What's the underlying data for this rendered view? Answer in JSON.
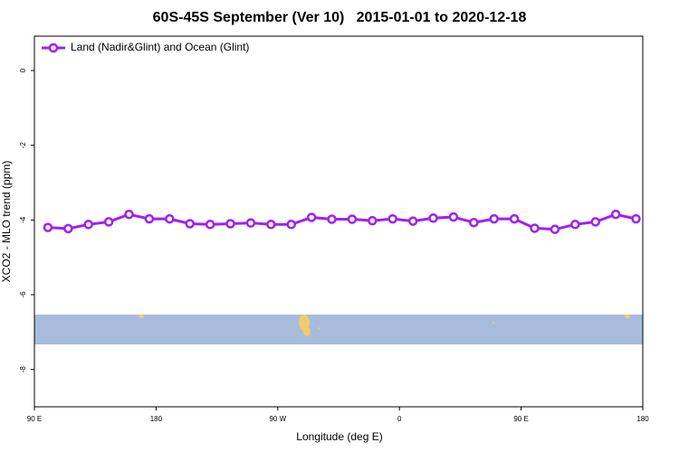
{
  "chart_data": {
    "type": "line",
    "title": "60S-45S September (Ver 10)   2015-01-01 to 2020-12-18",
    "x_label": "Longitude (deg E)",
    "y_label": "XCO2 - MLO trend (ppm)",
    "x": [
      100,
      115,
      130,
      145,
      160,
      175,
      190,
      205,
      220,
      235,
      250,
      265,
      280,
      295,
      310,
      325,
      340,
      355,
      370,
      385,
      400,
      415,
      430,
      445,
      460,
      475,
      490,
      505,
      520,
      535
    ],
    "series": [
      {
        "name": "Land (Nadir&Glint) and Ocean (Glint)",
        "color": "#a020f0",
        "values": [
          -4.2,
          -4.23,
          -4.12,
          -4.05,
          -3.85,
          -3.97,
          -3.97,
          -4.1,
          -4.12,
          -4.1,
          -4.08,
          -4.12,
          -4.12,
          -3.93,
          -3.98,
          -3.98,
          -4.02,
          -3.97,
          -4.03,
          -3.95,
          -3.92,
          -4.07,
          -3.97,
          -3.97,
          -4.22,
          -4.25,
          -4.12,
          -4.05,
          -3.85,
          -3.97
        ]
      }
    ],
    "xlim": [
      90,
      540
    ],
    "xticks": [
      {
        "value": 90,
        "label": "90 E"
      },
      {
        "value": 180,
        "label": "180"
      },
      {
        "value": 270,
        "label": "90 W"
      },
      {
        "value": 360,
        "label": "0"
      },
      {
        "value": 450,
        "label": "90 E"
      },
      {
        "value": 540,
        "label": "180"
      }
    ],
    "ylim": [
      -9.0,
      0.92
    ],
    "yticks": [
      0,
      -2,
      -4,
      -6,
      -8
    ],
    "legend": "top-left"
  }
}
